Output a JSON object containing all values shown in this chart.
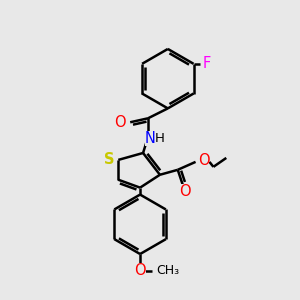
{
  "background_color": "#e8e8e8",
  "bond_color": "black",
  "bond_width": 1.8,
  "S_color": "#c8c800",
  "N_color": "#0000ff",
  "O_color": "#ff0000",
  "F_color": "#ff00ff",
  "figsize": [
    3.0,
    3.0
  ],
  "dpi": 100,
  "xlim": [
    0,
    300
  ],
  "ylim": [
    0,
    300
  ],
  "font_size": 9.5
}
